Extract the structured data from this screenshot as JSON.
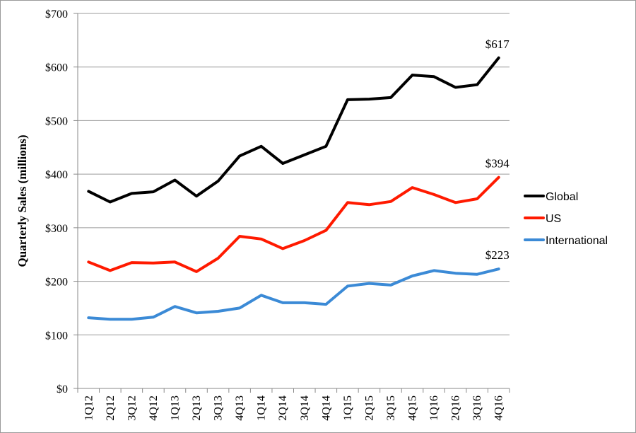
{
  "chart_data": {
    "type": "line",
    "title": "",
    "xlabel": "",
    "ylabel": "Quarterly Sales (millions)",
    "ylim": [
      0,
      700
    ],
    "yticks": [
      0,
      100,
      200,
      300,
      400,
      500,
      600,
      700
    ],
    "ytick_labels": [
      "$0",
      "$100",
      "$200",
      "$300",
      "$400",
      "$500",
      "$600",
      "$700"
    ],
    "grid": "horizontal",
    "legend_position": "right",
    "categories": [
      "1Q12",
      "2Q12",
      "3Q12",
      "4Q12",
      "1Q13",
      "2Q13",
      "3Q13",
      "4Q13",
      "1Q14",
      "2Q14",
      "3Q14",
      "4Q14",
      "1Q15",
      "2Q15",
      "3Q15",
      "4Q15",
      "1Q16",
      "2Q16",
      "3Q16",
      "4Q16"
    ],
    "series": [
      {
        "name": "Global",
        "color": "#000000",
        "values": [
          368,
          348,
          364,
          367,
          389,
          359,
          387,
          434,
          452,
          420,
          436,
          452,
          539,
          540,
          543,
          585,
          582,
          562,
          567,
          617
        ],
        "end_label": "$617"
      },
      {
        "name": "US",
        "color": "#ff1a00",
        "values": [
          236,
          220,
          235,
          234,
          236,
          218,
          243,
          284,
          279,
          261,
          276,
          295,
          347,
          343,
          349,
          375,
          362,
          347,
          354,
          394
        ],
        "end_label": "$394"
      },
      {
        "name": "International",
        "color": "#3b8ad6",
        "values": [
          132,
          129,
          129,
          133,
          153,
          141,
          144,
          150,
          174,
          160,
          160,
          157,
          191,
          196,
          193,
          210,
          220,
          215,
          213,
          223
        ],
        "end_label": "$223"
      }
    ]
  }
}
